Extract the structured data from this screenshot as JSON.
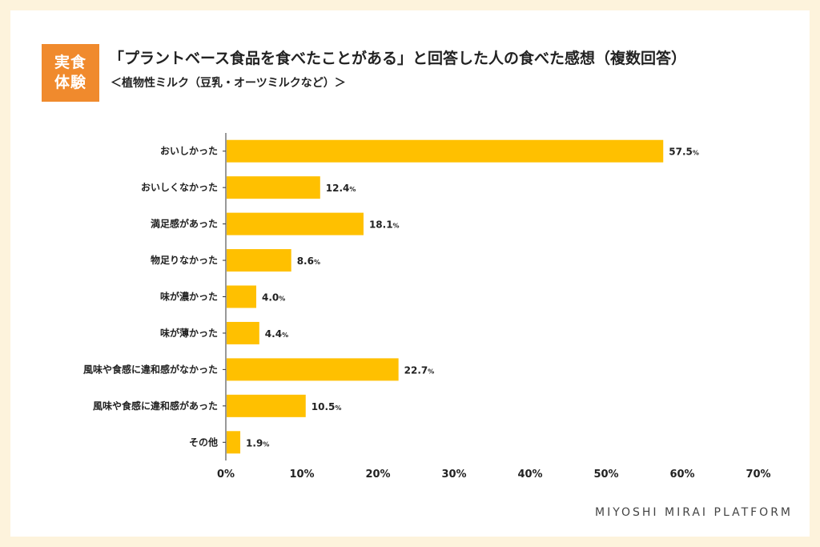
{
  "badge": {
    "line1": "実食",
    "line2": "体験"
  },
  "header": {
    "title": "「プラントベース食品を食べたことがある」と回答した人の食べた感想（複数回答）",
    "subtitle": "＜植物性ミルク（豆乳・オーツミルクなど）＞"
  },
  "footer": {
    "brand": "MIYOSHI MIRAI PLATFORM"
  },
  "colors": {
    "bar": "#ffc000",
    "accent": "#f08a2d",
    "background": "#fdf3dc"
  },
  "chart_data": {
    "type": "bar",
    "orientation": "horizontal",
    "categories": [
      "おいしかった",
      "おいしくなかった",
      "満足感があった",
      "物足りなかった",
      "味が濃かった",
      "味が薄かった",
      "風味や食感に違和感がなかった",
      "風味や食感に違和感があった",
      "その他"
    ],
    "values": [
      57.5,
      12.4,
      18.1,
      8.6,
      4.0,
      4.4,
      22.7,
      10.5,
      1.9
    ],
    "value_labels": [
      "57.5",
      "12.4",
      "18.1",
      "8.6",
      "4.0",
      "4.4",
      "22.7",
      "10.5",
      "1.9"
    ],
    "unit": "%",
    "xlim": [
      0,
      70
    ],
    "xticks": [
      "0%",
      "10%",
      "20%",
      "30%",
      "40%",
      "50%",
      "60%",
      "70%"
    ],
    "grid": false,
    "legend": "none"
  }
}
